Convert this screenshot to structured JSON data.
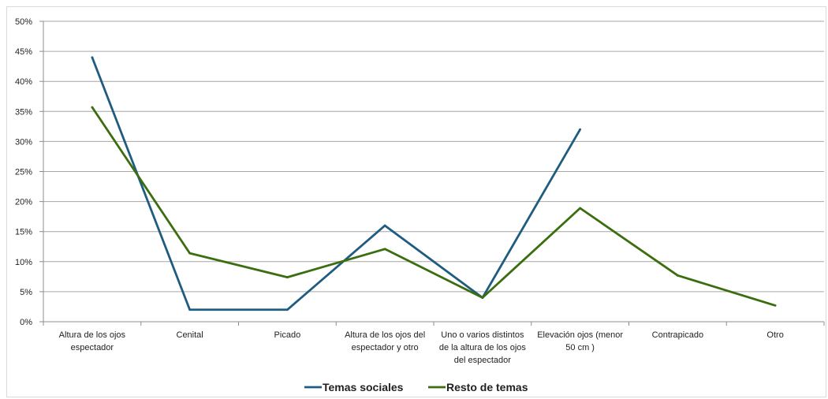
{
  "chart_data": {
    "type": "line",
    "title": "",
    "xlabel": "",
    "ylabel": "",
    "ylim": [
      0,
      0.5
    ],
    "y_ticks": [
      "0%",
      "5%",
      "10%",
      "15%",
      "20%",
      "25%",
      "30%",
      "35%",
      "40%",
      "45%",
      "50%"
    ],
    "grid": true,
    "legend_position": "bottom",
    "categories": [
      [
        "Altura de los ojos",
        "espectador"
      ],
      [
        "Cenital"
      ],
      [
        "Picado"
      ],
      [
        "Altura de los ojos del",
        "espectador y otro"
      ],
      [
        "Uno o varios distintos",
        "de la altura de los ojos",
        "del espectador"
      ],
      [
        "Elevación ojos (menor",
        "50 cm )"
      ],
      [
        "Contrapicado"
      ],
      [
        "Otro"
      ]
    ],
    "series": [
      {
        "name": "Temas sociales",
        "color": "#1f5c80",
        "values": [
          0.44,
          0.02,
          0.02,
          0.16,
          0.04,
          0.32,
          null,
          null
        ]
      },
      {
        "name": "Resto de temas",
        "color": "#3a6e0f",
        "values": [
          0.357,
          0.114,
          0.074,
          0.121,
          0.04,
          0.189,
          0.077,
          0.027
        ]
      }
    ]
  }
}
